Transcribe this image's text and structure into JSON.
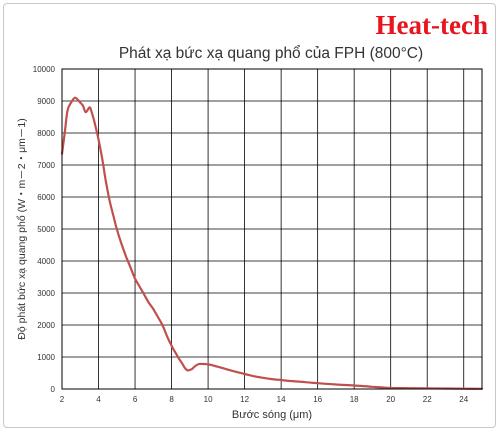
{
  "brand": {
    "text": "Heat-tech",
    "color": "#e8141e"
  },
  "chart_data": {
    "type": "line",
    "title": "Phát xạ bức xạ quang phổ của FPH (800°C)",
    "xlabel": "Bước sóng (μm)",
    "ylabel": "Độ phát bức xạ quang phổ (W・m－2・μm－1)",
    "xlim": [
      2,
      25
    ],
    "ylim": [
      0,
      10000
    ],
    "xticks": [
      "2",
      "4",
      "6",
      "8",
      "10",
      "12",
      "14",
      "16",
      "18",
      "20",
      "22",
      "24"
    ],
    "xtick_values": [
      2,
      4,
      6,
      8,
      10,
      12,
      14,
      16,
      18,
      20,
      22,
      24
    ],
    "yticks": [
      "0",
      "1000",
      "2000",
      "3000",
      "4000",
      "5000",
      "6000",
      "7000",
      "8000",
      "9000",
      "10000"
    ],
    "ytick_values": [
      0,
      1000,
      2000,
      3000,
      4000,
      5000,
      6000,
      7000,
      8000,
      9000,
      10000
    ],
    "grid": true,
    "legend": "none",
    "line_color": "#c0504d",
    "series": [
      {
        "x": [
          2.0,
          2.15,
          2.3,
          2.5,
          2.7,
          2.85,
          3.0,
          3.15,
          3.3,
          3.5,
          3.6,
          3.75,
          3.9,
          4.0,
          4.2,
          4.4,
          4.6,
          4.8,
          5.0,
          5.25,
          5.5,
          5.75,
          6.0,
          6.25,
          6.5,
          6.75,
          7.0,
          7.25,
          7.5,
          7.75,
          8.0,
          8.2,
          8.4,
          8.6,
          8.75,
          8.9,
          9.1,
          9.3,
          9.5,
          9.75,
          10.0,
          10.25,
          10.5,
          11.0,
          11.5,
          12.0,
          12.5,
          13.0,
          13.5,
          14.0,
          14.5,
          15.0,
          16.0,
          17.0,
          18.0,
          19.0,
          19.5,
          20.0,
          21.0,
          22.0,
          23.0,
          24.0,
          25.0
        ],
        "y": [
          7350,
          8000,
          8700,
          8950,
          9100,
          9050,
          8950,
          8850,
          8650,
          8800,
          8700,
          8400,
          8050,
          7800,
          7200,
          6500,
          5900,
          5450,
          5000,
          4550,
          4150,
          3800,
          3450,
          3200,
          2950,
          2700,
          2500,
          2250,
          2000,
          1650,
          1350,
          1150,
          950,
          780,
          640,
          580,
          620,
          720,
          780,
          780,
          770,
          740,
          700,
          620,
          540,
          470,
          400,
          350,
          310,
          280,
          250,
          230,
          180,
          140,
          110,
          70,
          50,
          30,
          25,
          20,
          15,
          10,
          5
        ]
      }
    ]
  }
}
